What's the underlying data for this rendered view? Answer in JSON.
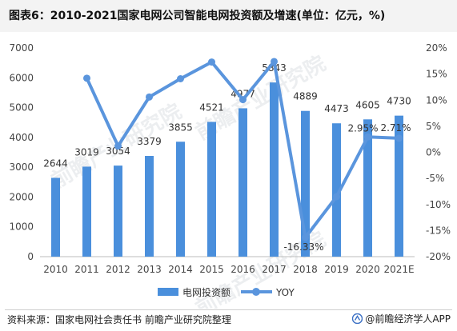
{
  "title": "图表6：2010-2021国家电网公司智能电网投资额及增速(单位：亿元，%)",
  "source": "资料来源：国家电网社会责任书 前瞻产业研究院整理",
  "brand": "@前瞻经济学人APP",
  "watermark": "前瞻产业研究院",
  "colors": {
    "bar": "#4a8fdc",
    "line": "#5a95dd"
  },
  "chart_data": {
    "type": "bar",
    "categories": [
      "2010",
      "2011",
      "2012",
      "2013",
      "2014",
      "2015",
      "2016",
      "2017",
      "2018",
      "2019",
      "2020",
      "2021E"
    ],
    "series": [
      {
        "name": "电网投资额",
        "type": "bar",
        "axis": "left",
        "values": [
          2644,
          3019,
          3054,
          3379,
          3855,
          4521,
          4977,
          5843,
          4889,
          4473,
          4605,
          4730
        ],
        "labels": [
          "2644",
          "3019",
          "3054",
          "3379",
          "3855",
          "4521",
          "4977",
          "5843",
          "4889",
          "4473",
          "4605",
          "4730"
        ]
      },
      {
        "name": "YOY",
        "type": "line",
        "axis": "right",
        "values": [
          null,
          14.2,
          1.2,
          10.6,
          14.1,
          17.3,
          10.1,
          17.4,
          -16.33,
          -8.5,
          2.95,
          2.71
        ],
        "labels": {
          "8": "-16.33%",
          "10": "2.95%",
          "11": "2.71%"
        }
      }
    ],
    "y_left": {
      "min": 0,
      "max": 7000,
      "ticks": [
        "0",
        "1000",
        "2000",
        "3000",
        "4000",
        "5000",
        "6000",
        "7000"
      ]
    },
    "y_right": {
      "min": -20,
      "max": 20,
      "ticks": [
        "-20%",
        "-15%",
        "-10%",
        "-5%",
        "0%",
        "5%",
        "10%",
        "15%",
        "20%"
      ]
    },
    "legend": {
      "position": "bottom"
    },
    "grid": false
  }
}
